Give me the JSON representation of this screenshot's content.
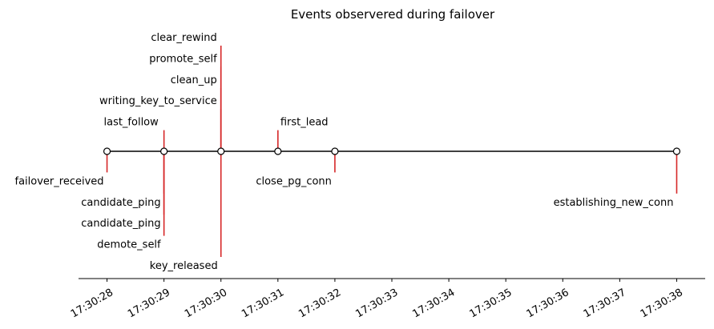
{
  "chart_data": {
    "type": "timeline",
    "title": "Events observered during failover",
    "x_ticks": [
      "17:30:28",
      "17:30:29",
      "17:30:30",
      "17:30:31",
      "17:30:32",
      "17:30:33",
      "17:30:34",
      "17:30:35",
      "17:30:36",
      "17:30:37",
      "17:30:38"
    ],
    "xlim": [
      "17:30:27.5",
      "17:30:38.5"
    ],
    "colors": {
      "stem": "#d62728",
      "baseline": "#000000",
      "marker_face": "#ffffff"
    },
    "events": [
      {
        "label": "failover_received",
        "time": "17:30:28",
        "side": "below",
        "level": 1
      },
      {
        "label": "last_follow",
        "time": "17:30:29",
        "side": "above",
        "level": 1
      },
      {
        "label": "candidate_ping",
        "time": "17:30:29",
        "side": "below",
        "level": 2
      },
      {
        "label": "candidate_ping",
        "time": "17:30:29",
        "side": "below",
        "level": 3
      },
      {
        "label": "demote_self",
        "time": "17:30:29",
        "side": "below",
        "level": 4
      },
      {
        "label": "writing_key_to_service",
        "time": "17:30:30",
        "side": "above",
        "level": 2
      },
      {
        "label": "clean_up",
        "time": "17:30:30",
        "side": "above",
        "level": 3
      },
      {
        "label": "promote_self",
        "time": "17:30:30",
        "side": "above",
        "level": 4
      },
      {
        "label": "clear_rewind",
        "time": "17:30:30",
        "side": "above",
        "level": 5
      },
      {
        "label": "key_released",
        "time": "17:30:30",
        "side": "below",
        "level": 5
      },
      {
        "label": "first_lead",
        "time": "17:30:31",
        "side": "above",
        "level": 1
      },
      {
        "label": "close_pg_conn",
        "time": "17:30:32",
        "side": "below",
        "level": 1
      },
      {
        "label": "establishing_new_conn",
        "time": "17:30:38",
        "side": "below",
        "level": 2
      }
    ]
  }
}
